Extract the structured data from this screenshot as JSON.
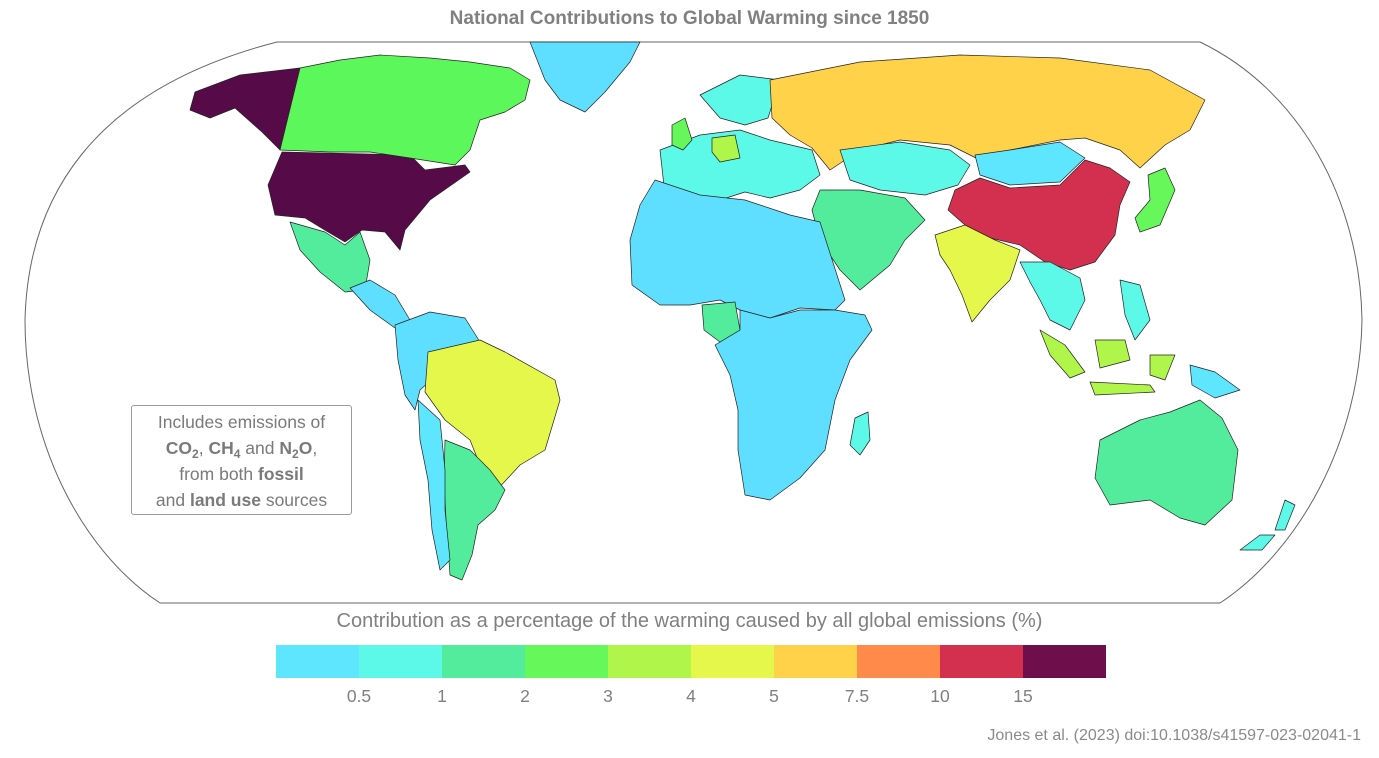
{
  "title": "National Contributions to Global Warming since 1850",
  "note": {
    "line1": "Includes emissions of",
    "gas1": "CO",
    "gas1_sub": "2",
    "sep1": ", ",
    "gas2": "CH",
    "gas2_sub": "4",
    "and1": " and ",
    "gas3": "N",
    "gas3_sub": "2",
    "gas3_tail": "O",
    "comma": ",",
    "line3_pre": "from both ",
    "line3_bold": "fossil",
    "line4_pre": "and ",
    "line4_bold": "land use",
    "line4_post": " sources"
  },
  "colorbar": {
    "title": "Contribution as a percentage of the warming caused by all global emissions (%)",
    "colors": [
      "#5fe6ff",
      "#5cf8e8",
      "#52ec9c",
      "#66f75a",
      "#b0f54a",
      "#e6f74c",
      "#ffd24a",
      "#ff8a4a",
      "#d33050",
      "#6e0f4c"
    ],
    "ticks": [
      "0.5",
      "1",
      "2",
      "3",
      "4",
      "5",
      "7.5",
      "10",
      "15"
    ]
  },
  "countries": [
    {
      "name": "United States",
      "color": "#570a48"
    },
    {
      "name": "Alaska",
      "color": "#570a48"
    },
    {
      "name": "Canada",
      "color": "#5cf75a"
    },
    {
      "name": "Greenland",
      "color": "#5fdfff"
    },
    {
      "name": "Mexico",
      "color": "#52ec9c"
    },
    {
      "name": "Central America",
      "color": "#5fdfff"
    },
    {
      "name": "South America (north)",
      "color": "#5fdfff"
    },
    {
      "name": "Brazil",
      "color": "#e6f74c"
    },
    {
      "name": "Argentina",
      "color": "#52ec9c"
    },
    {
      "name": "Chile",
      "color": "#5fe6ff"
    },
    {
      "name": "Europe",
      "color": "#5cf8e8"
    },
    {
      "name": "Germany",
      "color": "#b0f54a"
    },
    {
      "name": "United Kingdom",
      "color": "#66f75a"
    },
    {
      "name": "Russia",
      "color": "#ffd24a"
    },
    {
      "name": "Central Asia",
      "color": "#5cf8e8"
    },
    {
      "name": "Middle East",
      "color": "#52ec9c"
    },
    {
      "name": "China",
      "color": "#d33050"
    },
    {
      "name": "Mongolia",
      "color": "#5fe6ff"
    },
    {
      "name": "India",
      "color": "#e6f74c"
    },
    {
      "name": "Southeast Asia",
      "color": "#5cf8e8"
    },
    {
      "name": "Indonesia",
      "color": "#b0f54a"
    },
    {
      "name": "Japan",
      "color": "#66f75a"
    },
    {
      "name": "North Africa",
      "color": "#5fdfff"
    },
    {
      "name": "Sub-Saharan Africa",
      "color": "#5fdfff"
    },
    {
      "name": "Nigeria",
      "color": "#52ec9c"
    },
    {
      "name": "Madagascar",
      "color": "#5cf8e8"
    },
    {
      "name": "Australia",
      "color": "#52ec9c"
    },
    {
      "name": "New Zealand",
      "color": "#5cf8e8"
    },
    {
      "name": "Papua New Guinea",
      "color": "#5fe6ff"
    }
  ],
  "citation": "Jones et al. (2023) doi:10.1038/s41597-023-02041-1"
}
